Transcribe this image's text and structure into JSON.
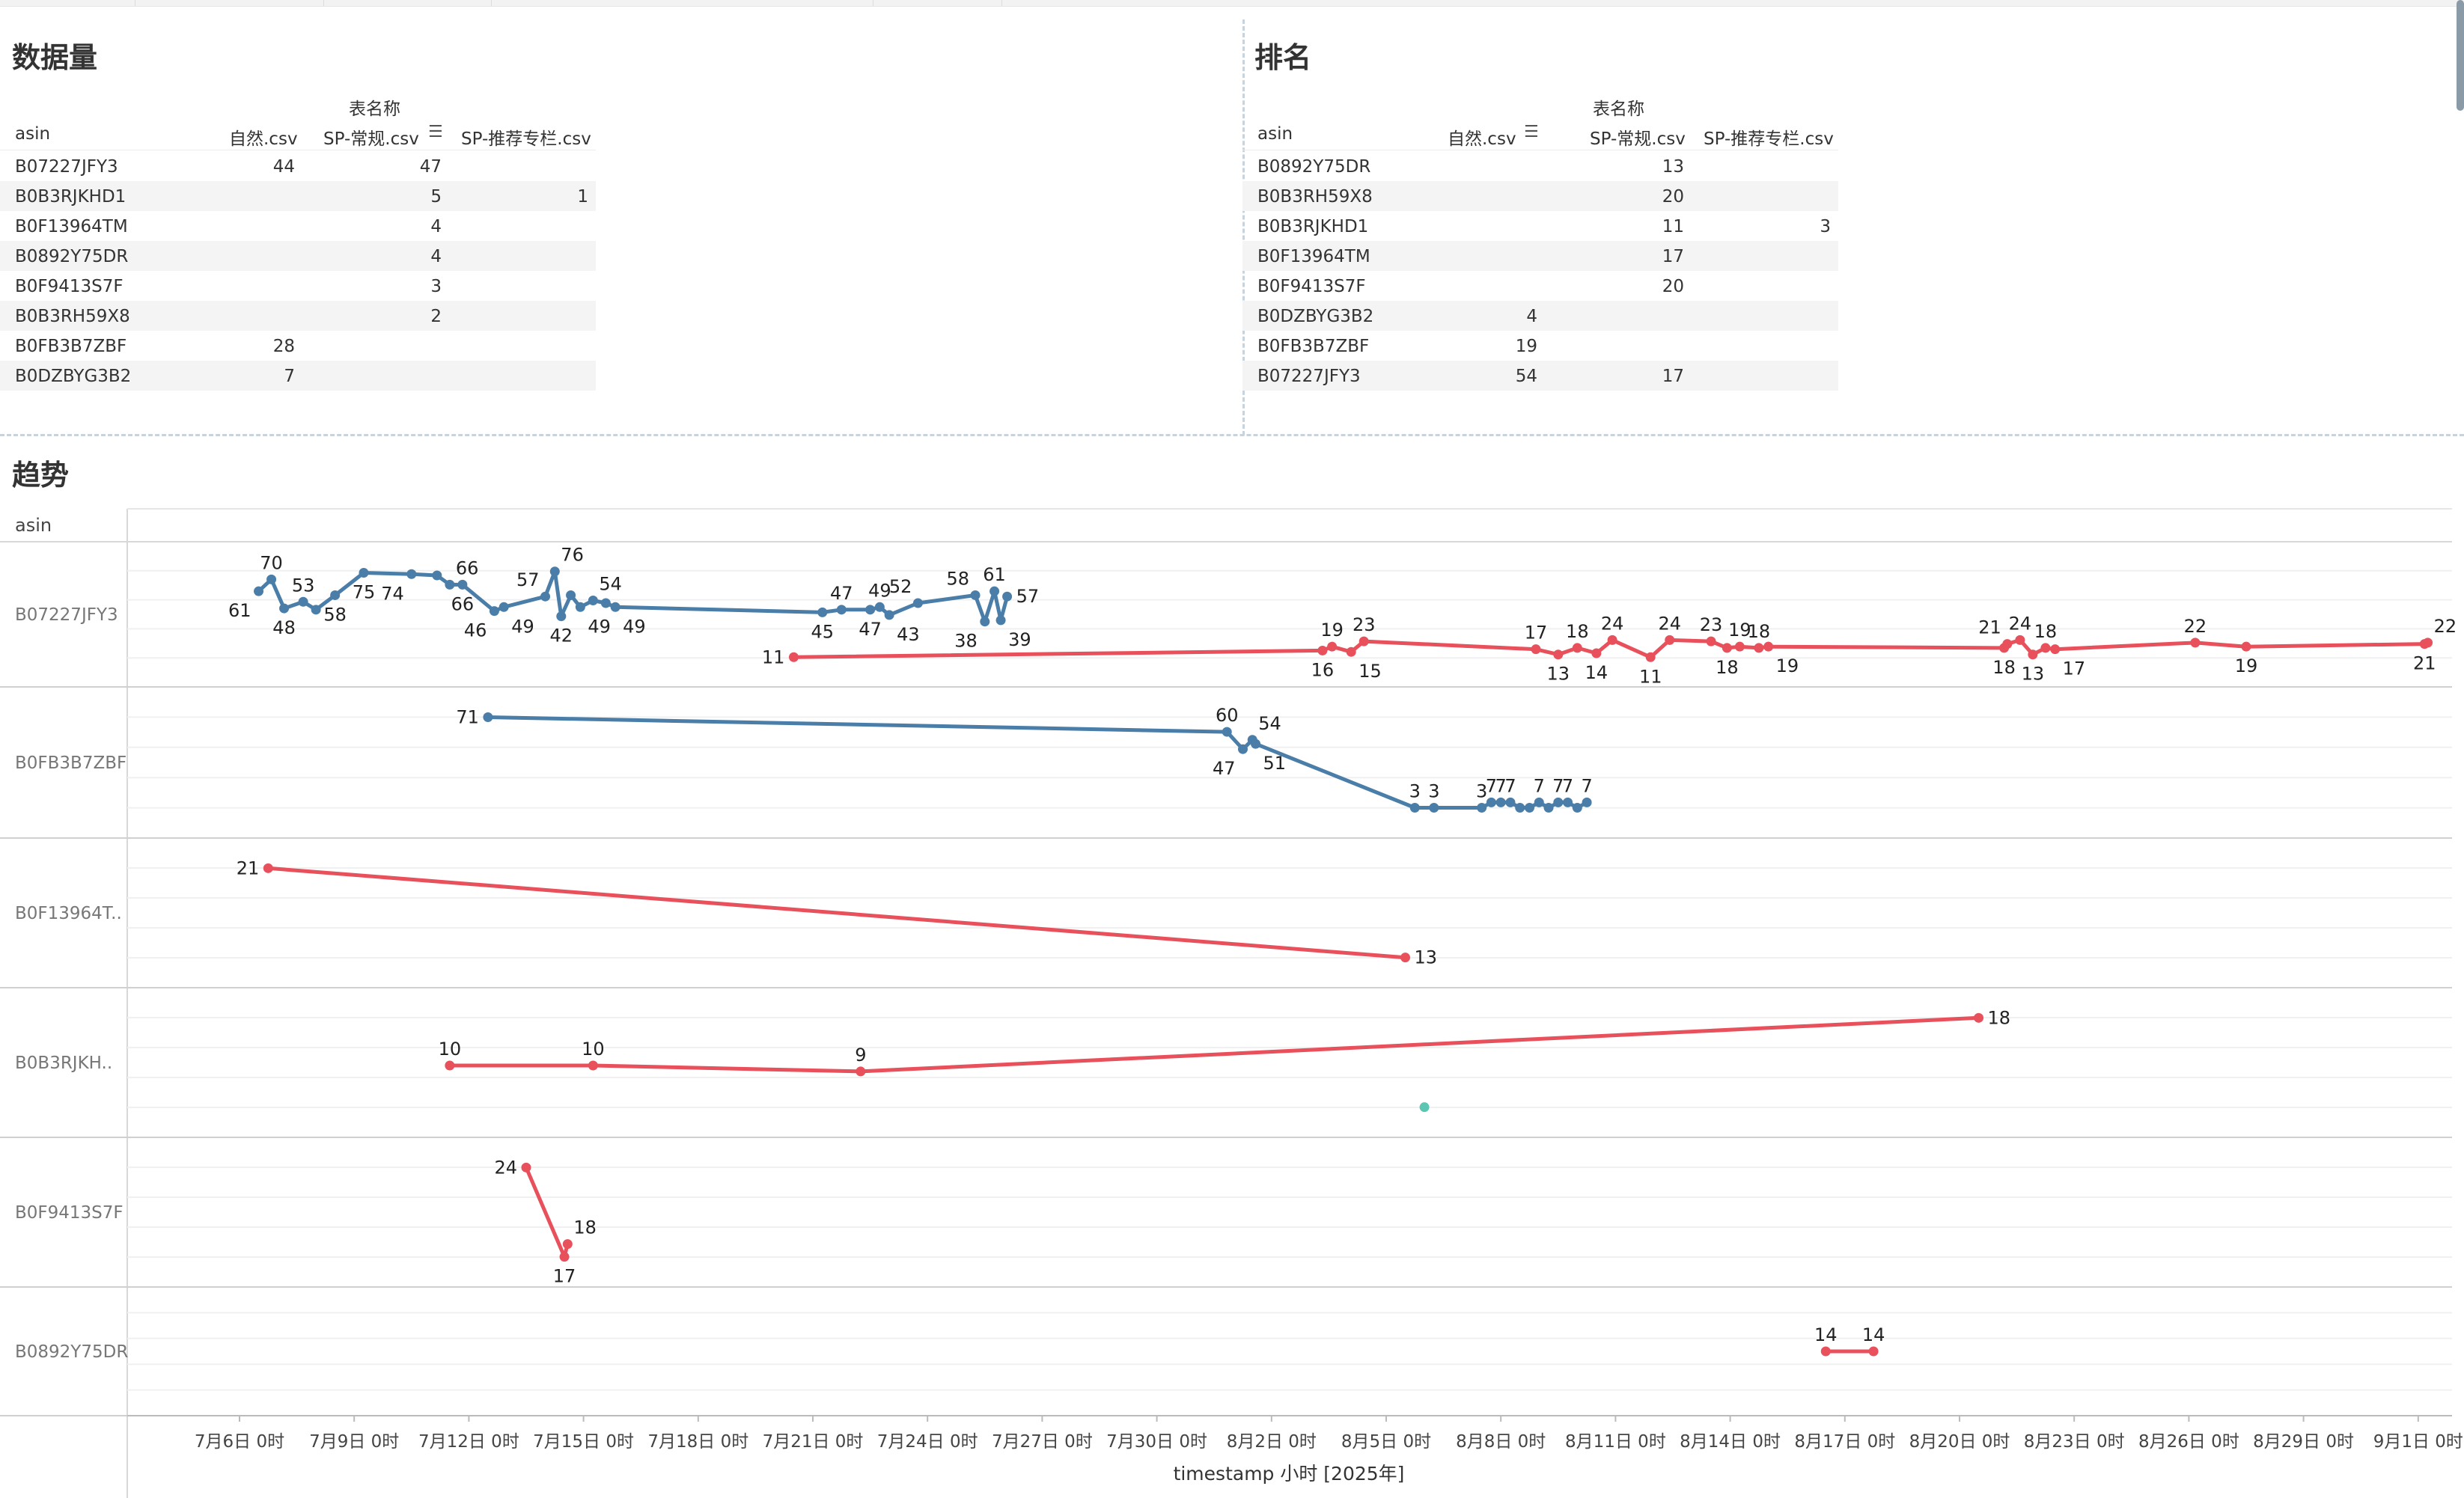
{
  "panels": {
    "count_title": "数据量",
    "rank_title": "排名",
    "trend_title": "趋势"
  },
  "count_table": {
    "header_group": "表名称",
    "row_header": "asin",
    "columns": [
      "自然.csv",
      "SP-常规.csv",
      "SP-推荐专栏.csv"
    ],
    "rows": [
      {
        "asin": "B07227JFY3",
        "v": [
          "44",
          "47",
          ""
        ]
      },
      {
        "asin": "B0B3RJKHD1",
        "v": [
          "",
          "5",
          "1"
        ]
      },
      {
        "asin": "B0F13964TM",
        "v": [
          "",
          "4",
          ""
        ]
      },
      {
        "asin": "B0892Y75DR",
        "v": [
          "",
          "4",
          ""
        ]
      },
      {
        "asin": "B0F9413S7F",
        "v": [
          "",
          "3",
          ""
        ]
      },
      {
        "asin": "B0B3RH59X8",
        "v": [
          "",
          "2",
          ""
        ]
      },
      {
        "asin": "B0FB3B7ZBF",
        "v": [
          "28",
          "",
          ""
        ]
      },
      {
        "asin": "B0DZBYG3B2",
        "v": [
          "7",
          "",
          ""
        ]
      }
    ]
  },
  "rank_table": {
    "header_group": "表名称",
    "row_header": "asin",
    "columns": [
      "自然.csv",
      "SP-常规.csv",
      "SP-推荐专栏.csv"
    ],
    "rows": [
      {
        "asin": "B0892Y75DR",
        "v": [
          "",
          "13",
          ""
        ]
      },
      {
        "asin": "B0B3RH59X8",
        "v": [
          "",
          "20",
          ""
        ]
      },
      {
        "asin": "B0B3RJKHD1",
        "v": [
          "",
          "11",
          "3"
        ]
      },
      {
        "asin": "B0F13964TM",
        "v": [
          "",
          "17",
          ""
        ]
      },
      {
        "asin": "B0F9413S7F",
        "v": [
          "",
          "20",
          ""
        ]
      },
      {
        "asin": "B0DZBYG3B2",
        "v": [
          "4",
          "",
          ""
        ]
      },
      {
        "asin": "B0FB3B7ZBF",
        "v": [
          "19",
          "",
          ""
        ]
      },
      {
        "asin": "B07227JFY3",
        "v": [
          "54",
          "17",
          ""
        ]
      }
    ]
  },
  "colors": {
    "natural": "#4a7ea8",
    "sp_regular": "#e8505b",
    "sp_recommend": "#5cc6b3"
  },
  "chart_data": {
    "type": "line",
    "xlabel": "timestamp 小时 [2025年]",
    "row_header": "asin",
    "x_ticks": [
      "7月6日 0时",
      "7月9日 0时",
      "7月12日 0时",
      "7月15日 0时",
      "7月18日 0时",
      "7月21日 0时",
      "7月24日 0时",
      "7月27日 0时",
      "7月30日 0时",
      "8月2日 0时",
      "8月5日 0时",
      "8月8日 0时",
      "8月11日 0时",
      "8月14日 0时",
      "8月17日 0时",
      "8月20日 0时",
      "8月23日 0时",
      "8月26日 0时",
      "8月29日 0时",
      "9月1日 0时"
    ],
    "rows": [
      {
        "asin": "B07227JFY3",
        "series": [
          {
            "color_key": "natural",
            "points": [
              {
                "x": "2025-07-06T12:00",
                "y": 61,
                "label": "61",
                "lp": "below-left"
              },
              {
                "x": "2025-07-06T20:00",
                "y": 70,
                "label": "70",
                "lp": "above"
              },
              {
                "x": "2025-07-07T04:00",
                "y": 48,
                "label": "48",
                "lp": "below"
              },
              {
                "x": "2025-07-07T16:00",
                "y": 53,
                "label": "53",
                "lp": "above"
              },
              {
                "x": "2025-07-08T00:00",
                "y": 47,
                "label": "",
                "lp": ""
              },
              {
                "x": "2025-07-08T12:00",
                "y": 58,
                "label": "58",
                "lp": "below"
              },
              {
                "x": "2025-07-09T06:00",
                "y": 75,
                "label": "75",
                "lp": "below"
              },
              {
                "x": "2025-07-10T12:00",
                "y": 74,
                "label": "74",
                "lp": "below-left"
              },
              {
                "x": "2025-07-11T04:00",
                "y": 73,
                "label": "",
                "lp": ""
              },
              {
                "x": "2025-07-11T12:00",
                "y": 66,
                "label": "66",
                "lp": "above-right"
              },
              {
                "x": "2025-07-11T20:00",
                "y": 66,
                "label": "66",
                "lp": "below"
              },
              {
                "x": "2025-07-12T16:00",
                "y": 46,
                "label": "46",
                "lp": "below-left"
              },
              {
                "x": "2025-07-12T22:00",
                "y": 49,
                "label": "49",
                "lp": "below-right"
              },
              {
                "x": "2025-07-14T00:00",
                "y": 57,
                "label": "57",
                "lp": "above-left"
              },
              {
                "x": "2025-07-14T06:00",
                "y": 76,
                "label": "76",
                "lp": "above-right"
              },
              {
                "x": "2025-07-14T10:00",
                "y": 42,
                "label": "42",
                "lp": "below"
              },
              {
                "x": "2025-07-14T16:00",
                "y": 58,
                "label": "",
                "lp": ""
              },
              {
                "x": "2025-07-14T22:00",
                "y": 49,
                "label": "49",
                "lp": "below-right"
              },
              {
                "x": "2025-07-15T06:00",
                "y": 54,
                "label": "54",
                "lp": "above-right"
              },
              {
                "x": "2025-07-15T14:00",
                "y": 52,
                "label": "",
                "lp": ""
              },
              {
                "x": "2025-07-15T20:00",
                "y": 49,
                "label": "49",
                "lp": "below-right"
              },
              {
                "x": "2025-07-21T06:00",
                "y": 45,
                "label": "45",
                "lp": "below"
              },
              {
                "x": "2025-07-21T18:00",
                "y": 47,
                "label": "47",
                "lp": "above"
              },
              {
                "x": "2025-07-22T12:00",
                "y": 47,
                "label": "47",
                "lp": "below"
              },
              {
                "x": "2025-07-22T18:00",
                "y": 49,
                "label": "49",
                "lp": "above"
              },
              {
                "x": "2025-07-23T00:00",
                "y": 43,
                "label": "43",
                "lp": "below-right"
              },
              {
                "x": "2025-07-23T18:00",
                "y": 52,
                "label": "52",
                "lp": "above-left"
              },
              {
                "x": "2025-07-25T06:00",
                "y": 58,
                "label": "58",
                "lp": "above-left"
              },
              {
                "x": "2025-07-25T12:00",
                "y": 38,
                "label": "38",
                "lp": "below-left"
              },
              {
                "x": "2025-07-25T18:00",
                "y": 61,
                "label": "61",
                "lp": "above"
              },
              {
                "x": "2025-07-25T22:00",
                "y": 39,
                "label": "39",
                "lp": "below-right"
              },
              {
                "x": "2025-07-26T02:00",
                "y": 57,
                "label": "57",
                "lp": "right"
              }
            ]
          },
          {
            "color_key": "sp_regular",
            "points": [
              {
                "x": "2025-07-20T12:00",
                "y": 11,
                "label": "11",
                "lp": "left"
              },
              {
                "x": "2025-08-03T08:00",
                "y": 16,
                "label": "16",
                "lp": "below"
              },
              {
                "x": "2025-08-03T14:00",
                "y": 19,
                "label": "19",
                "lp": "above"
              },
              {
                "x": "2025-08-04T02:00",
                "y": 15,
                "label": "15",
                "lp": "below-right"
              },
              {
                "x": "2025-08-04T10:00",
                "y": 23,
                "label": "23",
                "lp": "above"
              },
              {
                "x": "2025-08-08T22:00",
                "y": 17,
                "label": "17",
                "lp": "above"
              },
              {
                "x": "2025-08-09T12:00",
                "y": 13,
                "label": "13",
                "lp": "below"
              },
              {
                "x": "2025-08-10T00:00",
                "y": 18,
                "label": "18",
                "lp": "above"
              },
              {
                "x": "2025-08-10T12:00",
                "y": 14,
                "label": "14",
                "lp": "below"
              },
              {
                "x": "2025-08-10T22:00",
                "y": 24,
                "label": "24",
                "lp": "above"
              },
              {
                "x": "2025-08-11T22:00",
                "y": 11,
                "label": "11",
                "lp": "below"
              },
              {
                "x": "2025-08-12T10:00",
                "y": 24,
                "label": "24",
                "lp": "above"
              },
              {
                "x": "2025-08-13T12:00",
                "y": 23,
                "label": "23",
                "lp": "above"
              },
              {
                "x": "2025-08-13T22:00",
                "y": 18,
                "label": "18",
                "lp": "below"
              },
              {
                "x": "2025-08-14T06:00",
                "y": 19,
                "label": "19",
                "lp": "above"
              },
              {
                "x": "2025-08-14T18:00",
                "y": 18,
                "label": "18",
                "lp": "above"
              },
              {
                "x": "2025-08-15T00:00",
                "y": 19,
                "label": "19",
                "lp": "below-right"
              },
              {
                "x": "2025-08-21T04:00",
                "y": 18,
                "label": "18",
                "lp": "below"
              },
              {
                "x": "2025-08-21T06:00",
                "y": 21,
                "label": "21",
                "lp": "above-left"
              },
              {
                "x": "2025-08-21T14:00",
                "y": 24,
                "label": "24",
                "lp": "above"
              },
              {
                "x": "2025-08-21T22:00",
                "y": 13,
                "label": "13",
                "lp": "below"
              },
              {
                "x": "2025-08-22T06:00",
                "y": 18,
                "label": "18",
                "lp": "above"
              },
              {
                "x": "2025-08-22T12:00",
                "y": 17,
                "label": "17",
                "lp": "below-right"
              },
              {
                "x": "2025-08-26T04:00",
                "y": 22,
                "label": "22",
                "lp": "above"
              },
              {
                "x": "2025-08-27T12:00",
                "y": 19,
                "label": "19",
                "lp": "below"
              },
              {
                "x": "2025-09-01T04:00",
                "y": 21,
                "label": "21",
                "lp": "below"
              },
              {
                "x": "2025-09-01T06:00",
                "y": 22,
                "label": "22",
                "lp": "above-right"
              }
            ]
          }
        ]
      },
      {
        "asin": "B0FB3B7ZBF",
        "series": [
          {
            "color_key": "natural",
            "points": [
              {
                "x": "2025-07-12T12:00",
                "y": 71,
                "label": "71",
                "lp": "left"
              },
              {
                "x": "2025-07-31T20:00",
                "y": 60,
                "label": "60",
                "lp": "above"
              },
              {
                "x": "2025-08-01T06:00",
                "y": 47,
                "label": "47",
                "lp": "below-left"
              },
              {
                "x": "2025-08-01T12:00",
                "y": 54,
                "label": "54",
                "lp": "above-right"
              },
              {
                "x": "2025-08-01T14:00",
                "y": 51,
                "label": "51",
                "lp": "below-right"
              },
              {
                "x": "2025-08-05T18:00",
                "y": 3,
                "label": "3",
                "lp": "above"
              },
              {
                "x": "2025-08-06T06:00",
                "y": 3,
                "label": "3",
                "lp": "above"
              },
              {
                "x": "2025-08-07T12:00",
                "y": 3,
                "label": "3",
                "lp": "above"
              },
              {
                "x": "2025-08-07T18:00",
                "y": 7,
                "label": "7",
                "lp": "above"
              },
              {
                "x": "2025-08-08T00:00",
                "y": 7,
                "label": "7",
                "lp": "above"
              },
              {
                "x": "2025-08-08T06:00",
                "y": 7,
                "label": "7",
                "lp": "above"
              },
              {
                "x": "2025-08-08T12:00",
                "y": 3,
                "label": "",
                "lp": ""
              },
              {
                "x": "2025-08-08T18:00",
                "y": 3,
                "label": "",
                "lp": ""
              },
              {
                "x": "2025-08-09T00:00",
                "y": 7,
                "label": "7",
                "lp": "above"
              },
              {
                "x": "2025-08-09T06:00",
                "y": 3,
                "label": "",
                "lp": ""
              },
              {
                "x": "2025-08-09T12:00",
                "y": 7,
                "label": "7",
                "lp": "above"
              },
              {
                "x": "2025-08-09T18:00",
                "y": 7,
                "label": "7",
                "lp": "above"
              },
              {
                "x": "2025-08-10T00:00",
                "y": 3,
                "label": "",
                "lp": ""
              },
              {
                "x": "2025-08-10T06:00",
                "y": 7,
                "label": "7",
                "lp": "above"
              }
            ]
          }
        ]
      },
      {
        "asin": "B0F13964T..",
        "series": [
          {
            "color_key": "sp_regular",
            "points": [
              {
                "x": "2025-07-06T18:00",
                "y": 21,
                "label": "21",
                "lp": "left"
              },
              {
                "x": "2025-08-05T12:00",
                "y": 13,
                "label": "13",
                "lp": "right"
              }
            ]
          }
        ]
      },
      {
        "asin": "B0B3RJKH..",
        "series": [
          {
            "color_key": "sp_regular",
            "points": [
              {
                "x": "2025-07-11T12:00",
                "y": 10,
                "label": "10",
                "lp": "above"
              },
              {
                "x": "2025-07-15T06:00",
                "y": 10,
                "label": "10",
                "lp": "above"
              },
              {
                "x": "2025-07-22T06:00",
                "y": 9,
                "label": "9",
                "lp": "above"
              },
              {
                "x": "2025-08-20T12:00",
                "y": 18,
                "label": "18",
                "lp": "right"
              }
            ]
          },
          {
            "color_key": "sp_recommend",
            "points": [
              {
                "x": "2025-08-06T00:00",
                "y": 3,
                "label": "",
                "lp": ""
              }
            ]
          }
        ]
      },
      {
        "asin": "B0F9413S7F",
        "series": [
          {
            "color_key": "sp_regular",
            "points": [
              {
                "x": "2025-07-13T12:00",
                "y": 24,
                "label": "24",
                "lp": "left"
              },
              {
                "x": "2025-07-14T12:00",
                "y": 17,
                "label": "17",
                "lp": "below"
              },
              {
                "x": "2025-07-14T14:00",
                "y": 18,
                "label": "18",
                "lp": "above-right"
              }
            ]
          }
        ]
      },
      {
        "asin": "B0892Y75DR",
        "series": [
          {
            "color_key": "sp_regular",
            "points": [
              {
                "x": "2025-08-16T12:00",
                "y": 14,
                "label": "14",
                "lp": "above"
              },
              {
                "x": "2025-08-17T18:00",
                "y": 14,
                "label": "14",
                "lp": "above"
              }
            ]
          }
        ]
      }
    ]
  }
}
